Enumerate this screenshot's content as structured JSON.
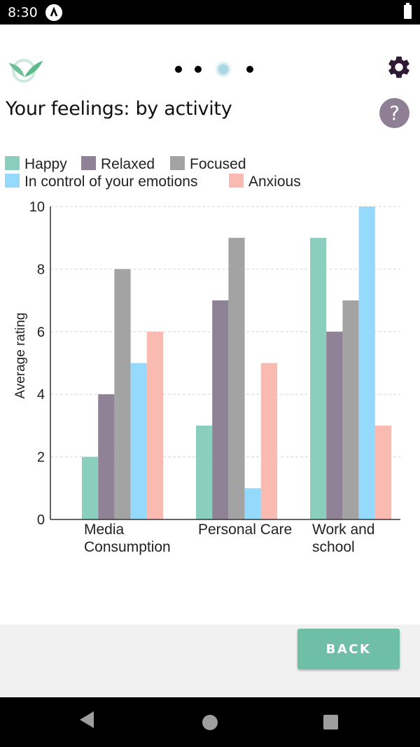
{
  "status_bar": {
    "time": "8:30"
  },
  "header": {
    "title": "Your feelings: by activity",
    "help_label": "?",
    "pager": {
      "pages": 4,
      "active_index": 2
    }
  },
  "footer": {
    "back_label": "BACK"
  },
  "colors": {
    "Happy": "#8acfbd",
    "Relaxed": "#8f8196",
    "Focused": "#a4a3a4",
    "In control of your emotions": "#95d9fc",
    "Anxious": "#f8bab1",
    "accent": "#6fbea6"
  },
  "chart_data": {
    "type": "bar",
    "title": "Your feelings: by activity",
    "xlabel": "",
    "ylabel": "Average rating",
    "ylim": [
      0,
      10
    ],
    "yticks": [
      0,
      2,
      4,
      6,
      8,
      10
    ],
    "grid": true,
    "legend_position": "top-left",
    "categories": [
      "Media Consumption",
      "Personal Care",
      "Work and school"
    ],
    "category_lines": [
      [
        "Media",
        "Consumption"
      ],
      [
        "Personal  Care"
      ],
      [
        "Work  and",
        "school"
      ]
    ],
    "series": [
      {
        "name": "Happy",
        "values": [
          2,
          3,
          9
        ]
      },
      {
        "name": "Relaxed",
        "values": [
          4,
          7,
          6
        ]
      },
      {
        "name": "Focused",
        "values": [
          8,
          9,
          7
        ]
      },
      {
        "name": "In control of your emotions",
        "values": [
          5,
          1,
          10
        ]
      },
      {
        "name": "Anxious",
        "values": [
          6,
          5,
          3
        ]
      }
    ]
  }
}
